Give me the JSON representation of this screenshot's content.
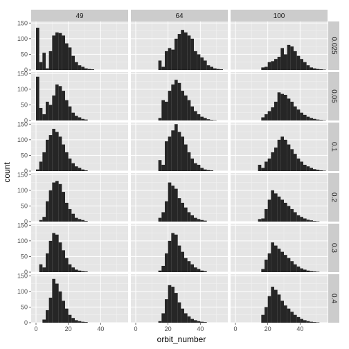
{
  "chart_data": {
    "type": "bar",
    "subtype": "faceted-histogram",
    "xlabel": "orbit_number",
    "ylabel": "count",
    "facet_cols": [
      "49",
      "64",
      "100"
    ],
    "facet_rows": [
      "0.025",
      "0.05",
      "0.1",
      "0.2",
      "0.3",
      "0.4"
    ],
    "bin_width": 2,
    "x_start": 0,
    "xlim": [
      -3,
      57
    ],
    "ylim": [
      0,
      155
    ],
    "x_ticks": [
      "0",
      "20",
      "40"
    ],
    "x_tick_values": [
      0,
      20,
      40
    ],
    "y_ticks": [
      "0",
      "50",
      "100",
      "150"
    ],
    "y_tick_values": [
      0,
      50,
      100,
      150
    ],
    "grid": true,
    "bar_color": "#262626",
    "panel_background": "#e5e5e5",
    "panels": [
      [
        [
          135,
          25,
          55,
          5,
          60,
          110,
          120,
          118,
          110,
          85,
          72,
          45,
          25,
          15,
          10,
          5,
          3,
          2
        ],
        [
          0,
          0,
          0,
          0,
          0,
          0,
          0,
          30,
          10,
          60,
          70,
          65,
          100,
          115,
          128,
          120,
          110,
          100,
          60,
          50,
          40,
          30,
          15,
          10,
          5,
          3,
          2
        ],
        [
          0,
          0,
          0,
          0,
          0,
          0,
          0,
          0,
          8,
          10,
          25,
          28,
          35,
          42,
          70,
          50,
          80,
          75,
          60,
          45,
          35,
          25,
          15,
          8,
          5,
          3,
          2,
          1
        ]
      ],
      [
        [
          140,
          40,
          20,
          60,
          50,
          80,
          115,
          110,
          95,
          65,
          45,
          25,
          15,
          10,
          5,
          3
        ],
        [
          0,
          0,
          0,
          0,
          0,
          0,
          0,
          8,
          65,
          60,
          95,
          115,
          130,
          120,
          95,
          80,
          65,
          45,
          30,
          20,
          12,
          8,
          4,
          2,
          1
        ],
        [
          0,
          0,
          0,
          0,
          0,
          0,
          0,
          0,
          10,
          20,
          30,
          42,
          60,
          90,
          85,
          82,
          70,
          60,
          45,
          35,
          25,
          18,
          12,
          8,
          5,
          3,
          2,
          1
        ]
      ],
      [
        [
          5,
          30,
          60,
          100,
          115,
          135,
          125,
          110,
          85,
          60,
          40,
          25,
          15,
          10,
          5,
          2
        ],
        [
          0,
          0,
          0,
          0,
          0,
          0,
          0,
          35,
          20,
          95,
          110,
          130,
          150,
          125,
          110,
          85,
          60,
          40,
          25,
          20,
          10,
          5,
          3,
          2
        ],
        [
          0,
          0,
          0,
          0,
          0,
          0,
          0,
          20,
          10,
          30,
          40,
          60,
          75,
          100,
          110,
          100,
          85,
          70,
          55,
          40,
          30,
          20,
          15,
          10,
          6,
          4,
          2,
          1
        ]
      ],
      [
        [
          0,
          5,
          15,
          65,
          100,
          125,
          130,
          120,
          95,
          60,
          40,
          25,
          12,
          8,
          5,
          2
        ],
        [
          0,
          0,
          0,
          0,
          0,
          0,
          0,
          12,
          30,
          65,
          125,
          115,
          105,
          75,
          60,
          45,
          30,
          20,
          12,
          8,
          5,
          3
        ],
        [
          0,
          0,
          0,
          0,
          0,
          0,
          0,
          8,
          10,
          40,
          70,
          100,
          90,
          80,
          70,
          60,
          50,
          40,
          30,
          20,
          15,
          10,
          6,
          4,
          2,
          1
        ]
      ],
      [
        [
          0,
          25,
          15,
          60,
          100,
          125,
          120,
          95,
          70,
          45,
          25,
          15,
          8,
          5,
          3,
          2
        ],
        [
          0,
          0,
          0,
          0,
          0,
          0,
          0,
          5,
          20,
          60,
          100,
          125,
          120,
          85,
          65,
          45,
          35,
          25,
          15,
          10,
          5,
          3
        ],
        [
          0,
          0,
          0,
          0,
          0,
          0,
          0,
          0,
          10,
          40,
          60,
          95,
          85,
          75,
          65,
          55,
          45,
          35,
          25,
          18,
          12,
          8,
          5,
          3,
          2,
          1
        ]
      ],
      [
        [
          0,
          0,
          10,
          40,
          80,
          140,
          125,
          100,
          70,
          45,
          25,
          15,
          8,
          5,
          3,
          2
        ],
        [
          0,
          0,
          0,
          0,
          0,
          0,
          0,
          5,
          30,
          75,
          120,
          115,
          95,
          65,
          45,
          30,
          20,
          12,
          8,
          5,
          3,
          2
        ],
        [
          0,
          0,
          0,
          0,
          0,
          0,
          0,
          0,
          25,
          50,
          85,
          115,
          105,
          90,
          70,
          55,
          45,
          35,
          25,
          18,
          12,
          8,
          5,
          3,
          2,
          1
        ]
      ]
    ]
  }
}
